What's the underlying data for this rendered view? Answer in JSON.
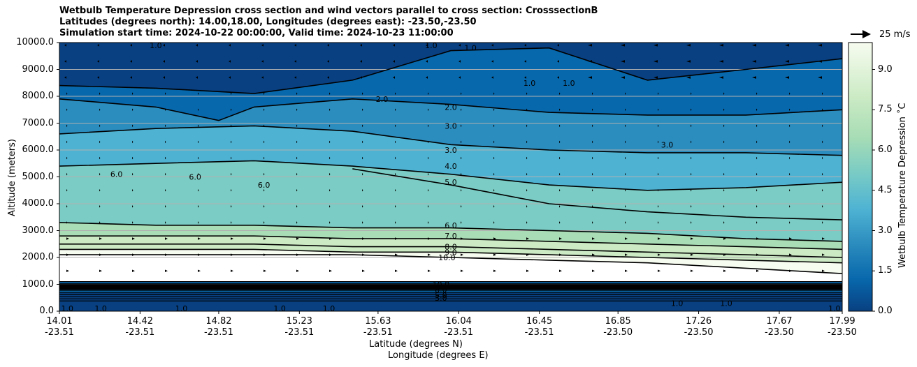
{
  "title": {
    "line1": "Wetbulb Temperature Depression cross section and wind vectors parallel to cross section: CrosssectionB",
    "line2": "Latitudes (degrees north): 14.00,18.00, Longitudes (degrees east): -23.50,-23.50",
    "line3": "Simulation start time: 2024-10-22 00:00:00, Valid time: 2024-10-23 11:00:00"
  },
  "colors": {
    "dark_blue": "#084081",
    "mid_blue": "#0868ac",
    "blue": "#2b8cbe",
    "light_blue": "#4eb3d3",
    "teal": "#7bccc4",
    "green": "#a8ddb5",
    "light_green": "#ccebc5",
    "pale": "#f7fcf0"
  },
  "wind_key": {
    "label": "25 m/s"
  },
  "colorbar": {
    "label": "Wetbulb Temperature Depression ˚C",
    "ticks": [
      "0.0",
      "1.5",
      "3.0",
      "4.5",
      "6.0",
      "7.5",
      "9.0"
    ],
    "range": [
      0,
      10
    ]
  },
  "chart_data": {
    "type": "heatmap",
    "subtype": "filled contour cross section with contour lines and wind vectors",
    "xlabel": "Latitude (degrees N)",
    "xlabel2": "Longitude (degrees E)",
    "ylabel": "Altitude (meters)",
    "ylim": [
      0,
      10000
    ],
    "yticks": [
      "0.0",
      "1000.0",
      "2000.0",
      "3000.0",
      "4000.0",
      "5000.0",
      "6000.0",
      "7000.0",
      "8000.0",
      "9000.0",
      "10000.0"
    ],
    "xticks": [
      {
        "lat": "14.01",
        "lon": "-23.51"
      },
      {
        "lat": "14.42",
        "lon": "-23.51"
      },
      {
        "lat": "14.82",
        "lon": "-23.51"
      },
      {
        "lat": "15.23",
        "lon": "-23.51"
      },
      {
        "lat": "15.63",
        "lon": "-23.51"
      },
      {
        "lat": "16.04",
        "lon": "-23.51"
      },
      {
        "lat": "16.45",
        "lon": "-23.51"
      },
      {
        "lat": "16.85",
        "lon": "-23.50"
      },
      {
        "lat": "17.26",
        "lon": "-23.50"
      },
      {
        "lat": "17.67",
        "lon": "-23.50"
      },
      {
        "lat": "17.99",
        "lon": "-23.50"
      }
    ],
    "grid": "horizontal",
    "contour_levels": [
      "1.0",
      "2.0",
      "3.0",
      "4.0",
      "5.0",
      "6.0",
      "7.0",
      "8.0",
      "9.0",
      "10.0"
    ],
    "contours": [
      {
        "level": 1.0,
        "x": [
          14.01,
          14.5,
          15.0,
          15.5,
          16.0,
          16.5,
          17.0,
          17.5,
          17.99
        ],
        "alt": [
          8400,
          8300,
          8100,
          8600,
          9700,
          9800,
          8600,
          9000,
          9400
        ]
      },
      {
        "level": 2.0,
        "x": [
          14.01,
          14.5,
          14.82,
          15.0,
          15.5,
          16.0,
          16.5,
          17.0,
          17.5,
          17.99
        ],
        "alt": [
          7900,
          7600,
          7100,
          7600,
          7900,
          7700,
          7400,
          7300,
          7300,
          7500
        ]
      },
      {
        "level": 3.0,
        "x": [
          14.01,
          14.5,
          15.0,
          15.5,
          16.0,
          16.5,
          17.0,
          17.5,
          17.99
        ],
        "alt": [
          6600,
          6800,
          6900,
          6700,
          6200,
          6000,
          5900,
          5900,
          5800
        ]
      },
      {
        "level": 4.0,
        "x": [
          14.01,
          14.5,
          15.0,
          15.5,
          16.0,
          16.5,
          17.0,
          17.5,
          17.99
        ],
        "alt": [
          5400,
          5500,
          5600,
          5400,
          5100,
          4700,
          4500,
          4600,
          4800
        ]
      },
      {
        "level": 5.0,
        "x": [
          15.5,
          16.0,
          16.5,
          17.0,
          17.5,
          17.99
        ],
        "alt": [
          5300,
          4700,
          4000,
          3700,
          3500,
          3400
        ]
      },
      {
        "level": 6.0,
        "x": [
          14.01,
          14.5,
          15.0,
          15.5,
          16.0,
          16.5,
          17.0,
          17.5,
          17.99
        ],
        "alt": [
          3300,
          3200,
          3200,
          3100,
          3100,
          3000,
          2900,
          2700,
          2600
        ]
      },
      {
        "level": 7.0,
        "x": [
          14.01,
          14.5,
          15.0,
          15.5,
          16.0,
          16.5,
          17.0,
          17.5,
          17.99
        ],
        "alt": [
          2800,
          2800,
          2800,
          2700,
          2700,
          2600,
          2500,
          2400,
          2300
        ]
      },
      {
        "level": 8.0,
        "x": [
          14.01,
          14.5,
          15.0,
          15.5,
          16.0,
          16.5,
          17.0,
          17.5,
          17.99
        ],
        "alt": [
          2500,
          2500,
          2500,
          2400,
          2400,
          2300,
          2200,
          2100,
          2000
        ]
      },
      {
        "level": 9.0,
        "x": [
          14.01,
          14.5,
          15.0,
          15.5,
          16.0,
          16.5,
          17.0,
          17.5,
          17.99
        ],
        "alt": [
          2300,
          2300,
          2300,
          2200,
          2200,
          2100,
          2000,
          1900,
          1800
        ]
      },
      {
        "level": 10.0,
        "x": [
          14.01,
          14.5,
          15.0,
          15.5,
          16.0,
          16.5,
          17.0,
          17.5,
          17.99
        ],
        "alt": [
          2100,
          2100,
          2100,
          2100,
          2000,
          1900,
          1800,
          1600,
          1400
        ]
      }
    ],
    "contour_labels": [
      {
        "text": "1.0",
        "x": 14.5,
        "alt": 9900
      },
      {
        "text": "1.0",
        "x": 15.9,
        "alt": 9900
      },
      {
        "text": "1.0",
        "x": 16.1,
        "alt": 9800
      },
      {
        "text": "1.0",
        "x": 16.4,
        "alt": 8500
      },
      {
        "text": "1.0",
        "x": 16.6,
        "alt": 8500
      },
      {
        "text": "2.0",
        "x": 15.65,
        "alt": 7900
      },
      {
        "text": "2.0",
        "x": 16.0,
        "alt": 7600
      },
      {
        "text": "3.0",
        "x": 16.0,
        "alt": 6900
      },
      {
        "text": "3.0",
        "x": 16.0,
        "alt": 6000
      },
      {
        "text": "3.0",
        "x": 17.1,
        "alt": 6200
      },
      {
        "text": "4.0",
        "x": 16.0,
        "alt": 5400
      },
      {
        "text": "5.0",
        "x": 16.0,
        "alt": 4800
      },
      {
        "text": "6.0",
        "x": 14.3,
        "alt": 5100
      },
      {
        "text": "6.0",
        "x": 14.7,
        "alt": 5000
      },
      {
        "text": "6.0",
        "x": 15.05,
        "alt": 4700
      },
      {
        "text": "6.0",
        "x": 16.0,
        "alt": 3200
      },
      {
        "text": "7.0",
        "x": 16.0,
        "alt": 2800
      },
      {
        "text": "8.0",
        "x": 16.0,
        "alt": 2400
      },
      {
        "text": "9.0",
        "x": 16.0,
        "alt": 2200
      },
      {
        "text": "10.0",
        "x": 15.98,
        "alt": 2000
      },
      {
        "text": "10.0",
        "x": 15.95,
        "alt": 1000
      },
      {
        "text": "8.0",
        "x": 15.95,
        "alt": 800
      },
      {
        "text": "5.0",
        "x": 15.95,
        "alt": 600
      },
      {
        "text": "3.0",
        "x": 15.95,
        "alt": 500
      },
      {
        "text": "1.0",
        "x": 14.05,
        "alt": 100
      },
      {
        "text": "1.0",
        "x": 14.22,
        "alt": 100
      },
      {
        "text": "1.0",
        "x": 14.63,
        "alt": 100
      },
      {
        "text": "1.0",
        "x": 15.13,
        "alt": 100
      },
      {
        "text": "1.0",
        "x": 15.38,
        "alt": 100
      },
      {
        "text": "1.0",
        "x": 17.15,
        "alt": 300
      },
      {
        "text": "1.0",
        "x": 17.4,
        "alt": 300
      },
      {
        "text": "1.0",
        "x": 17.95,
        "alt": 100
      }
    ]
  }
}
